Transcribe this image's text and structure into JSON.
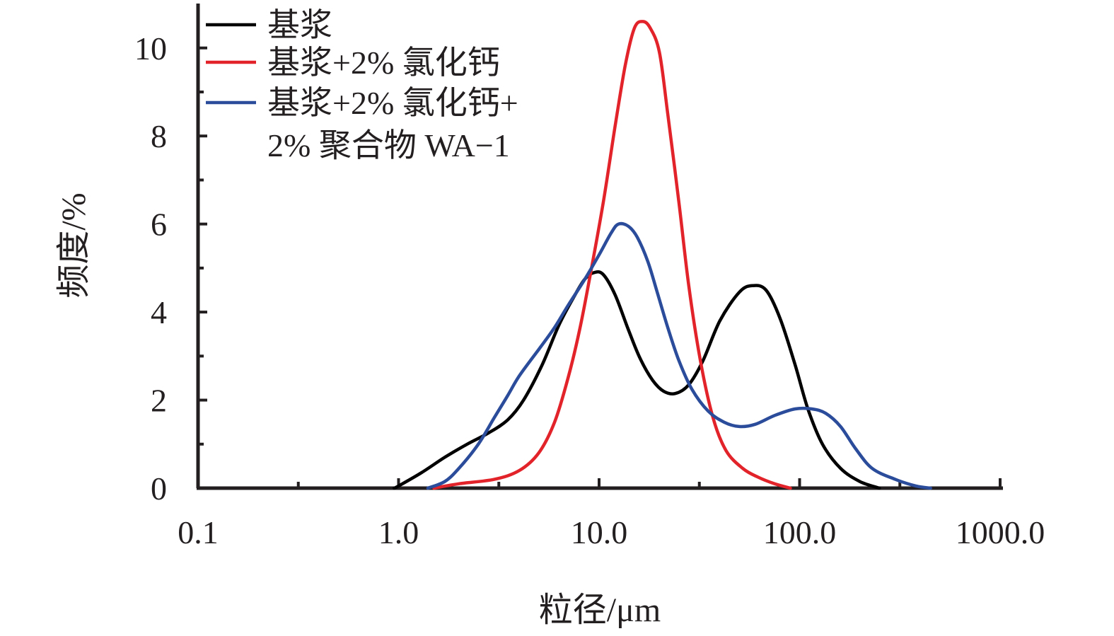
{
  "chart_data": {
    "type": "line",
    "xscale": "log",
    "xlim": [
      0.1,
      1000.0
    ],
    "ylim": [
      0,
      10.8
    ],
    "xlabel": "粒径/μm",
    "ylabel": "频度/%",
    "x_ticks": [
      "0.1",
      "1.0",
      "10.0",
      "100.0",
      "1000.0"
    ],
    "y_ticks": [
      "0",
      "2",
      "4",
      "6",
      "8",
      "10"
    ],
    "grid": false,
    "legend_position": "top-left",
    "legend": [
      "基浆",
      "基浆+2% 氯化钙",
      "基浆+2% 氯化钙+",
      "2% 聚合物 WA−1"
    ],
    "series": [
      {
        "name": "基浆",
        "color": "#000000",
        "points": [
          [
            0.95,
            0
          ],
          [
            1.0,
            0.05
          ],
          [
            1.3,
            0.35
          ],
          [
            1.7,
            0.7
          ],
          [
            2.2,
            1.0
          ],
          [
            2.8,
            1.25
          ],
          [
            3.5,
            1.55
          ],
          [
            4.2,
            2.0
          ],
          [
            5.2,
            2.8
          ],
          [
            6.3,
            3.7
          ],
          [
            7.5,
            4.35
          ],
          [
            8.5,
            4.75
          ],
          [
            9.5,
            4.9
          ],
          [
            10.5,
            4.85
          ],
          [
            12.0,
            4.4
          ],
          [
            14.0,
            3.6
          ],
          [
            16.0,
            2.95
          ],
          [
            18.5,
            2.45
          ],
          [
            21.0,
            2.2
          ],
          [
            24.0,
            2.15
          ],
          [
            28.0,
            2.35
          ],
          [
            33.0,
            2.9
          ],
          [
            40.0,
            3.8
          ],
          [
            50.0,
            4.45
          ],
          [
            58.0,
            4.6
          ],
          [
            68.0,
            4.5
          ],
          [
            80.0,
            3.85
          ],
          [
            95.0,
            2.8
          ],
          [
            110.0,
            1.8
          ],
          [
            130.0,
            1.0
          ],
          [
            160.0,
            0.45
          ],
          [
            200.0,
            0.15
          ],
          [
            250.0,
            0
          ]
        ]
      },
      {
        "name": "基浆+2% 氯化钙",
        "color": "#e2232a",
        "points": [
          [
            1.5,
            0
          ],
          [
            2.0,
            0.1
          ],
          [
            3.0,
            0.2
          ],
          [
            4.0,
            0.4
          ],
          [
            5.0,
            0.8
          ],
          [
            6.0,
            1.5
          ],
          [
            7.0,
            2.5
          ],
          [
            8.0,
            3.6
          ],
          [
            9.0,
            4.8
          ],
          [
            10.5,
            6.5
          ],
          [
            12.0,
            8.2
          ],
          [
            13.5,
            9.6
          ],
          [
            15.0,
            10.45
          ],
          [
            16.5,
            10.6
          ],
          [
            18.0,
            10.45
          ],
          [
            20.0,
            9.9
          ],
          [
            22.0,
            8.5
          ],
          [
            25.0,
            6.5
          ],
          [
            28.0,
            4.6
          ],
          [
            32.0,
            2.9
          ],
          [
            37.0,
            1.6
          ],
          [
            43.0,
            0.85
          ],
          [
            52.0,
            0.45
          ],
          [
            62.0,
            0.25
          ],
          [
            75.0,
            0.1
          ],
          [
            90.0,
            0
          ]
        ]
      },
      {
        "name": "基浆+2% 氯化钙+2% 聚合物 WA−1",
        "color": "#2b4c9a",
        "points": [
          [
            1.4,
            0
          ],
          [
            1.7,
            0.15
          ],
          [
            2.0,
            0.45
          ],
          [
            2.5,
            1.0
          ],
          [
            3.0,
            1.6
          ],
          [
            3.5,
            2.1
          ],
          [
            4.0,
            2.55
          ],
          [
            5.0,
            3.15
          ],
          [
            6.0,
            3.65
          ],
          [
            7.0,
            4.15
          ],
          [
            8.5,
            4.75
          ],
          [
            10.0,
            5.3
          ],
          [
            11.5,
            5.8
          ],
          [
            12.5,
            6.0
          ],
          [
            14.0,
            5.95
          ],
          [
            15.5,
            5.7
          ],
          [
            17.5,
            5.15
          ],
          [
            19.5,
            4.45
          ],
          [
            22.0,
            3.65
          ],
          [
            25.0,
            2.9
          ],
          [
            29.0,
            2.25
          ],
          [
            35.0,
            1.75
          ],
          [
            42.0,
            1.5
          ],
          [
            50.0,
            1.4
          ],
          [
            60.0,
            1.45
          ],
          [
            75.0,
            1.65
          ],
          [
            95.0,
            1.8
          ],
          [
            115.0,
            1.8
          ],
          [
            135.0,
            1.7
          ],
          [
            160.0,
            1.4
          ],
          [
            190.0,
            0.9
          ],
          [
            230.0,
            0.45
          ],
          [
            300.0,
            0.2
          ],
          [
            380.0,
            0.05
          ],
          [
            450.0,
            0
          ]
        ]
      }
    ]
  }
}
